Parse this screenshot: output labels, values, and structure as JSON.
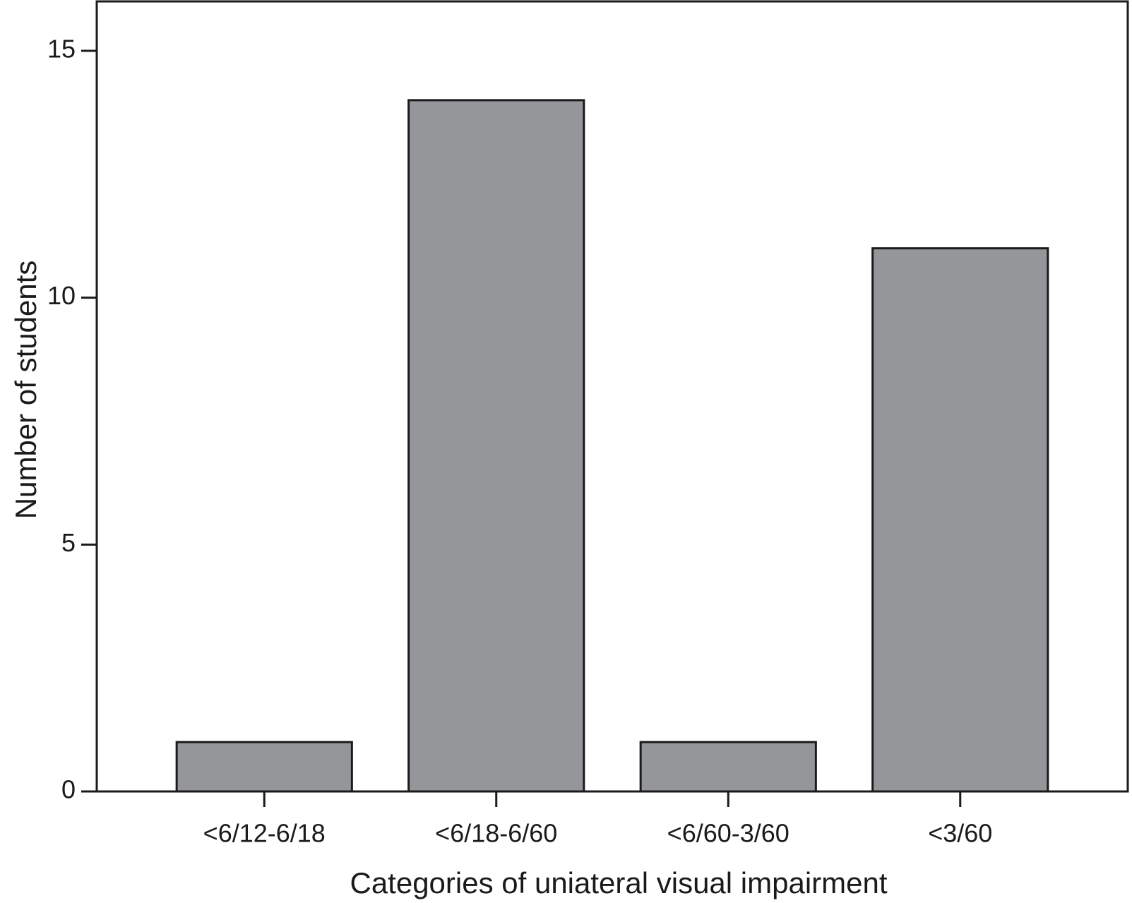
{
  "chart_data": {
    "type": "bar",
    "x_label": "Categories of uniateral visual impairment",
    "y_label": "Number of students",
    "categories": [
      "<6/12-6/18",
      "<6/18-6/60",
      "<6/60-3/60",
      "<3/60"
    ],
    "values": [
      1,
      14,
      1,
      11
    ],
    "color": "#959699",
    "ylim": [
      0,
      16
    ],
    "yticks": [
      0,
      5,
      10,
      15
    ],
    "grid": false
  }
}
